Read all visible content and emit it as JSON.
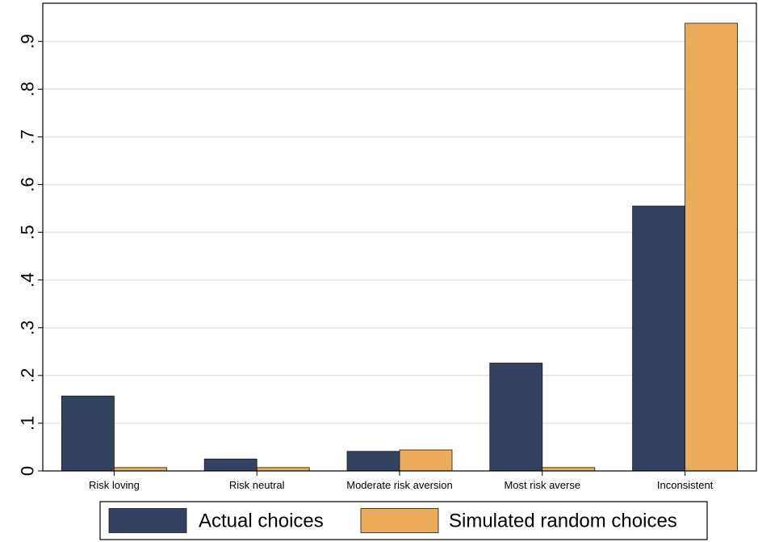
{
  "chart_data": {
    "type": "bar",
    "categories": [
      "Risk loving",
      "Risk neutral",
      "Moderate risk aversion",
      "Most risk averse",
      "Inconsistent"
    ],
    "series": [
      {
        "name": "Actual choices",
        "color": "#344261",
        "values": [
          0.157,
          0.025,
          0.041,
          0.226,
          0.555
        ]
      },
      {
        "name": "Simulated random choices",
        "color": "#ecac5c",
        "values": [
          0.007,
          0.007,
          0.044,
          0.007,
          0.938
        ]
      }
    ],
    "yticks": [
      0,
      0.1,
      0.2,
      0.3,
      0.4,
      0.5,
      0.6,
      0.7,
      0.8,
      0.9
    ],
    "ytick_labels": [
      "0",
      ".1",
      ".2",
      ".3",
      ".4",
      ".5",
      ".6",
      ".7",
      ".8",
      ".9"
    ],
    "ylim": [
      0,
      0.98
    ],
    "grid": true,
    "legend_position": "bottom",
    "title": "",
    "xlabel": "",
    "ylabel": ""
  }
}
